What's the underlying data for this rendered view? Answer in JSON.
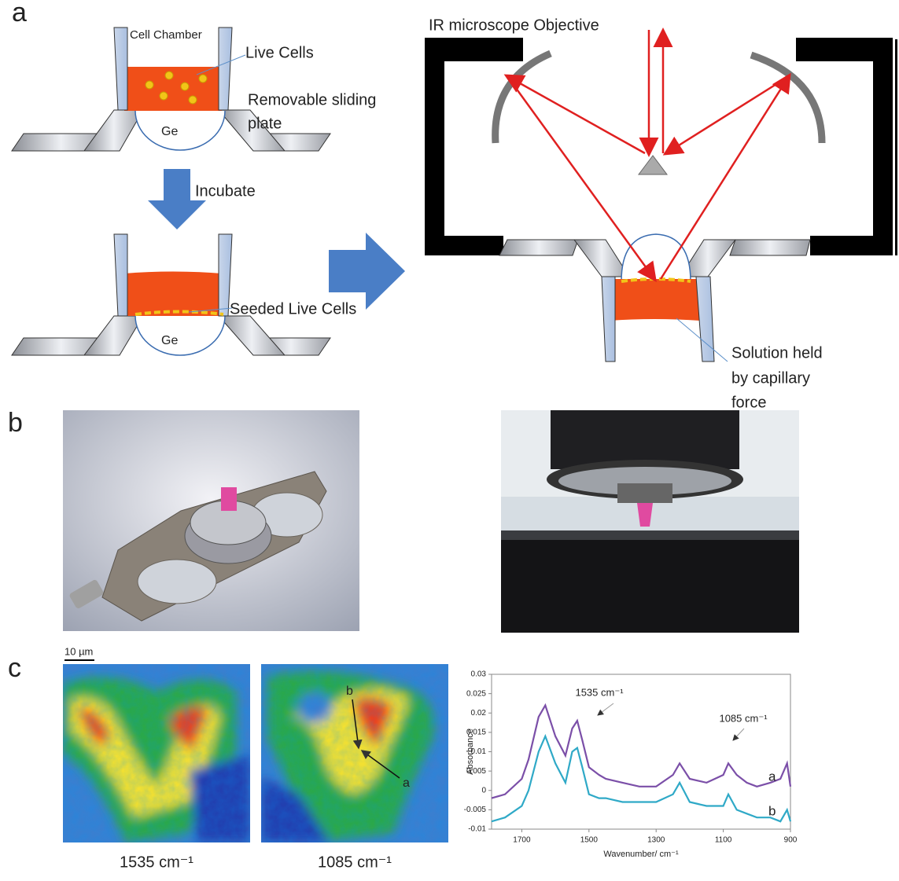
{
  "panel_labels": [
    "a",
    "b",
    "c"
  ],
  "diagram": {
    "cell_chamber": "Cell Chamber",
    "live_cells": "Live Cells",
    "removable_plate": [
      "Removable sliding",
      "plate"
    ],
    "ge_top": "Ge",
    "incubate": "Incubate",
    "seeded_cells": "Seeded Live Cells",
    "ge_bottom": "Ge",
    "objective": "IR microscope Objective",
    "solution": [
      "Solution held",
      "by capillary",
      "force"
    ]
  },
  "heatmaps": {
    "scale_bar": "10 µm",
    "labels": [
      "1535 cm⁻¹",
      "1085 cm⁻¹"
    ],
    "point_labels": [
      "b",
      "a"
    ]
  },
  "chart_data": {
    "type": "line",
    "xlabel": "Wavenumber/ cm⁻¹",
    "ylabel": "Absorbance",
    "annotations": [
      "1535 cm⁻¹",
      "1085 cm⁻¹"
    ],
    "x": [
      1790,
      1750,
      1700,
      1680,
      1650,
      1630,
      1600,
      1570,
      1550,
      1535,
      1520,
      1500,
      1470,
      1450,
      1400,
      1350,
      1300,
      1250,
      1230,
      1200,
      1150,
      1100,
      1085,
      1060,
      1030,
      1000,
      960,
      930,
      910,
      900
    ],
    "series": [
      {
        "name": "a",
        "color": "#7b4fa8",
        "values": [
          -0.002,
          -0.001,
          0.003,
          0.008,
          0.019,
          0.022,
          0.014,
          0.009,
          0.016,
          0.018,
          0.013,
          0.006,
          0.004,
          0.003,
          0.002,
          0.001,
          0.001,
          0.004,
          0.007,
          0.003,
          0.002,
          0.004,
          0.007,
          0.004,
          0.002,
          0.001,
          0.002,
          0.003,
          0.007,
          0.001
        ]
      },
      {
        "name": "b",
        "color": "#2fa9c7",
        "values": [
          -0.008,
          -0.007,
          -0.004,
          0.0,
          0.01,
          0.014,
          0.007,
          0.002,
          0.01,
          0.011,
          0.006,
          -0.001,
          -0.002,
          -0.002,
          -0.003,
          -0.003,
          -0.003,
          -0.001,
          0.002,
          -0.003,
          -0.004,
          -0.004,
          -0.001,
          -0.005,
          -0.006,
          -0.007,
          -0.007,
          -0.008,
          -0.005,
          -0.008
        ]
      }
    ],
    "xlim": [
      1790,
      900
    ],
    "xticks": [
      1700,
      1500,
      1300,
      1100,
      900
    ],
    "ylim": [
      -0.01,
      0.03
    ],
    "yticks": [
      0.03,
      0.025,
      0.02,
      0.015,
      0.01,
      0.005,
      0,
      -0.005,
      -0.01
    ]
  }
}
